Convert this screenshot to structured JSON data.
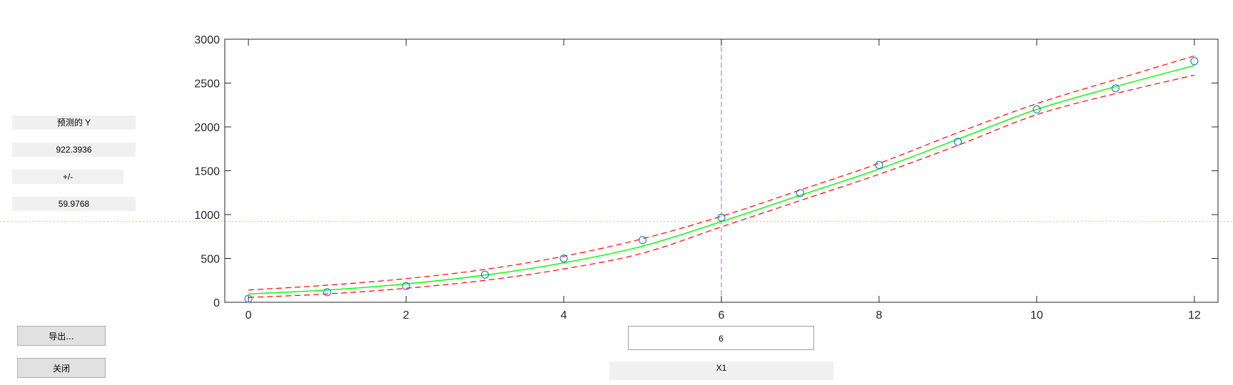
{
  "left_panel": {
    "predicted_label": "预测的 Y",
    "predicted_value": "922.3936",
    "pm_label": "+/-",
    "pm_value": "59.9768"
  },
  "buttons": {
    "export_label": "导出...",
    "close_label": "关闭"
  },
  "x_control": {
    "value": "6",
    "label": "X1"
  },
  "colors": {
    "fit": "#00ff00",
    "bounds": "#ff0000",
    "points": "#0072bd",
    "crosshair_v": "#c080c0",
    "crosshair_h": "#e0c070"
  },
  "chart_data": {
    "type": "line",
    "xlim": [
      -0.3,
      12.3
    ],
    "ylim": [
      0,
      3000
    ],
    "xticks": [
      0,
      2,
      4,
      6,
      8,
      10,
      12
    ],
    "yticks": [
      0,
      500,
      1000,
      1500,
      2000,
      2500,
      3000
    ],
    "grid": false,
    "observed": {
      "x": [
        0,
        1,
        2,
        3,
        4,
        5,
        6,
        7,
        8,
        9,
        10,
        11,
        12
      ],
      "y": [
        40,
        115,
        185,
        315,
        500,
        710,
        965,
        1245,
        1565,
        1830,
        2200,
        2440,
        2750
      ]
    },
    "fit": {
      "x": [
        0,
        1,
        2,
        3,
        4,
        5,
        6,
        7,
        8,
        9,
        10,
        11,
        12
      ],
      "y": [
        95,
        140,
        210,
        310,
        450,
        640,
        920,
        1220,
        1520,
        1860,
        2200,
        2460,
        2700
      ]
    },
    "upper_bound": {
      "x": [
        0,
        1,
        2,
        3,
        4,
        5,
        6,
        7,
        8,
        9,
        10,
        11,
        12
      ],
      "y": [
        140,
        195,
        270,
        375,
        525,
        725,
        980,
        1280,
        1585,
        1935,
        2265,
        2540,
        2810
      ]
    },
    "lower_bound": {
      "x": [
        0,
        1,
        2,
        3,
        4,
        5,
        6,
        7,
        8,
        9,
        10,
        11,
        12
      ],
      "y": [
        55,
        95,
        160,
        250,
        380,
        560,
        860,
        1160,
        1460,
        1790,
        2140,
        2380,
        2590
      ]
    },
    "crosshair": {
      "x": 6,
      "y": 922.3936
    }
  }
}
